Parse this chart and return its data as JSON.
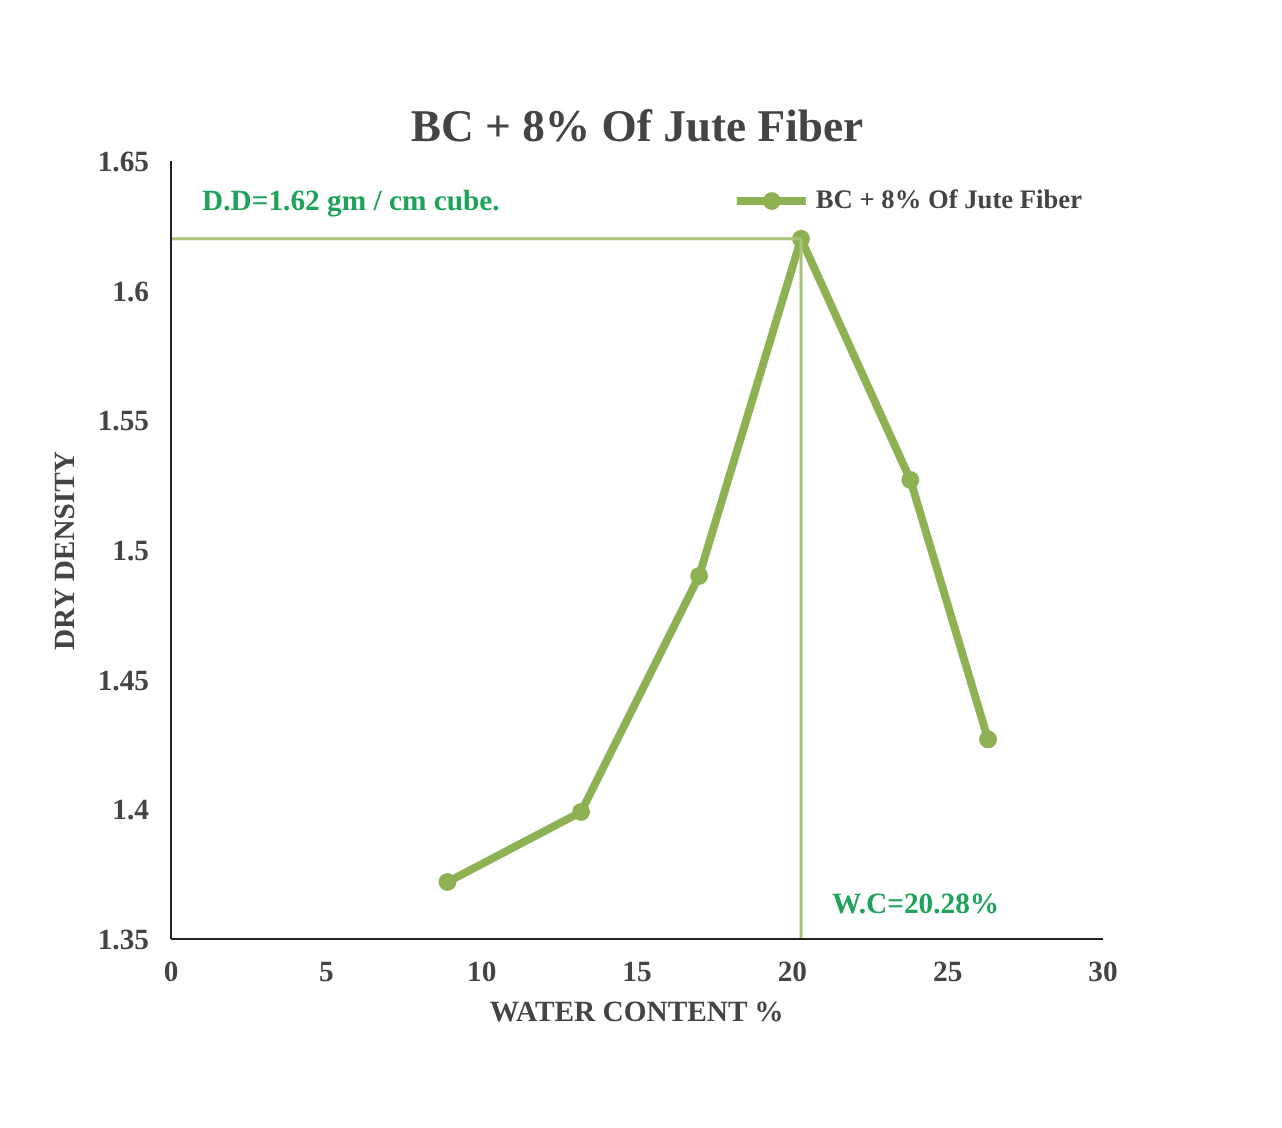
{
  "chart_data": {
    "type": "line",
    "title": "BC + 8% Of Jute Fiber",
    "xlabel": "WATER CONTENT %",
    "ylabel": "DRY DENSITY",
    "series": [
      {
        "name": "BC + 8% Of Jute Fiber",
        "color": "#8db153",
        "x": [
          8.9,
          13.2,
          17.0,
          20.28,
          23.8,
          26.3
        ],
        "values": [
          1.372,
          1.399,
          1.49,
          1.62,
          1.527,
          1.427
        ]
      }
    ],
    "xlim": [
      0,
      30
    ],
    "xticks": [
      0,
      5,
      10,
      15,
      20,
      25,
      30
    ],
    "ylim": [
      1.35,
      1.65
    ],
    "yticks": [
      1.35,
      1.4,
      1.45,
      1.5,
      1.55,
      1.6,
      1.65
    ],
    "ref_lines": [
      {
        "axis": "y",
        "value": 1.62,
        "label": "D.D=1.62 gm / cm cube.",
        "color": "#a9c47a"
      },
      {
        "axis": "x",
        "value": 20.28,
        "label": "W.C=20.28%",
        "color": "#a9c47a"
      }
    ],
    "grid": false,
    "legend": "top right",
    "marker": "circle",
    "line_style": "solid"
  }
}
